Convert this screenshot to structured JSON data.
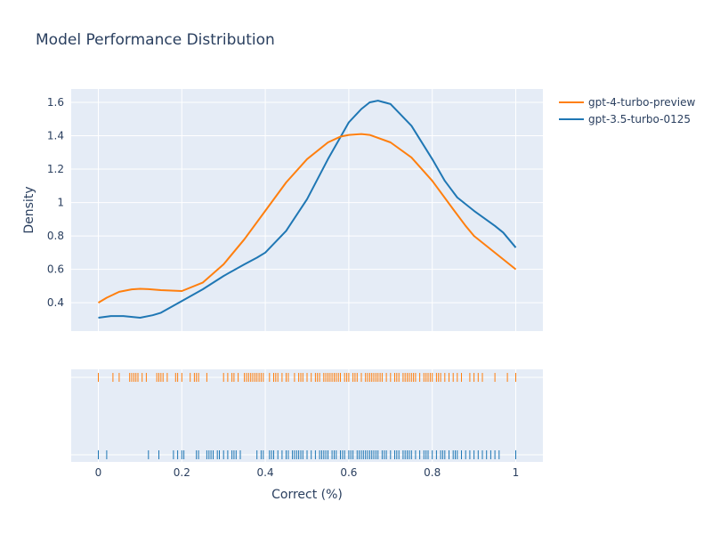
{
  "chart_data": {
    "type": "line",
    "title": "Model Performance Distribution",
    "xlabel": "Correct (%)",
    "ylabel": "Density",
    "xlim": [
      -0.065,
      1.065
    ],
    "ylim": [
      0.23,
      1.68
    ],
    "x_ticks": [
      0,
      0.2,
      0.4,
      0.6,
      0.8,
      1
    ],
    "x_tick_labels": [
      "0",
      "0.2",
      "0.4",
      "0.6",
      "0.8",
      "1"
    ],
    "y_ticks": [
      0.4,
      0.6,
      0.8,
      1.0,
      1.2,
      1.4,
      1.6
    ],
    "y_tick_labels": [
      "0.4",
      "0.6",
      "0.8",
      "1",
      "1.2",
      "1.4",
      "1.6"
    ],
    "grid": true,
    "legend_position": "top-right",
    "background_color": "#E5ECF6",
    "series": [
      {
        "name": "gpt-4-turbo-preview",
        "color": "#FF7F0E",
        "x": [
          0,
          0.02,
          0.05,
          0.08,
          0.1,
          0.12,
          0.15,
          0.2,
          0.25,
          0.3,
          0.35,
          0.4,
          0.45,
          0.5,
          0.55,
          0.58,
          0.6,
          0.63,
          0.65,
          0.7,
          0.75,
          0.8,
          0.85,
          0.88,
          0.9,
          1.0
        ],
        "y": [
          0.4,
          0.43,
          0.465,
          0.48,
          0.483,
          0.481,
          0.475,
          0.47,
          0.52,
          0.63,
          0.78,
          0.95,
          1.12,
          1.26,
          1.36,
          1.395,
          1.405,
          1.41,
          1.405,
          1.36,
          1.27,
          1.13,
          0.96,
          0.86,
          0.8,
          0.6
        ]
      },
      {
        "name": "gpt-3.5-turbo-0125",
        "color": "#1F77B4",
        "x": [
          0,
          0.03,
          0.06,
          0.1,
          0.13,
          0.15,
          0.2,
          0.25,
          0.3,
          0.35,
          0.38,
          0.4,
          0.45,
          0.5,
          0.55,
          0.6,
          0.63,
          0.65,
          0.67,
          0.7,
          0.75,
          0.8,
          0.83,
          0.86,
          0.9,
          0.95,
          0.97,
          1.0
        ],
        "y": [
          0.31,
          0.32,
          0.32,
          0.31,
          0.325,
          0.34,
          0.41,
          0.48,
          0.56,
          0.63,
          0.67,
          0.7,
          0.83,
          1.02,
          1.26,
          1.48,
          1.56,
          1.6,
          1.61,
          1.59,
          1.46,
          1.26,
          1.13,
          1.03,
          0.95,
          0.86,
          0.82,
          0.73
        ]
      }
    ],
    "rug": {
      "gpt-4-turbo-preview": [
        0,
        0,
        0,
        0.035,
        0.05,
        0.075,
        0.08,
        0.085,
        0.09,
        0.095,
        0.105,
        0.115,
        0.14,
        0.145,
        0.15,
        0.155,
        0.165,
        0.185,
        0.19,
        0.2,
        0.22,
        0.23,
        0.235,
        0.24,
        0.26,
        0.3,
        0.31,
        0.32,
        0.325,
        0.335,
        0.35,
        0.355,
        0.36,
        0.365,
        0.37,
        0.375,
        0.38,
        0.385,
        0.39,
        0.395,
        0.41,
        0.42,
        0.425,
        0.43,
        0.44,
        0.45,
        0.455,
        0.47,
        0.48,
        0.485,
        0.49,
        0.5,
        0.51,
        0.52,
        0.525,
        0.53,
        0.54,
        0.545,
        0.55,
        0.555,
        0.56,
        0.565,
        0.57,
        0.575,
        0.58,
        0.59,
        0.595,
        0.6,
        0.61,
        0.615,
        0.62,
        0.63,
        0.64,
        0.645,
        0.65,
        0.655,
        0.66,
        0.665,
        0.67,
        0.675,
        0.68,
        0.69,
        0.7,
        0.71,
        0.715,
        0.72,
        0.73,
        0.735,
        0.74,
        0.745,
        0.75,
        0.755,
        0.76,
        0.77,
        0.78,
        0.785,
        0.79,
        0.795,
        0.8,
        0.81,
        0.815,
        0.82,
        0.83,
        0.84,
        0.85,
        0.86,
        0.87,
        0.89,
        0.9,
        0.91,
        0.92,
        0.95,
        0.98,
        1.0,
        1.0
      ],
      "gpt-3.5-turbo-0125": [
        0,
        0,
        0,
        0.02,
        0.12,
        0.145,
        0.18,
        0.19,
        0.2,
        0.205,
        0.235,
        0.24,
        0.26,
        0.265,
        0.27,
        0.275,
        0.285,
        0.29,
        0.3,
        0.31,
        0.32,
        0.325,
        0.33,
        0.34,
        0.38,
        0.39,
        0.395,
        0.41,
        0.415,
        0.42,
        0.43,
        0.44,
        0.45,
        0.455,
        0.465,
        0.47,
        0.475,
        0.48,
        0.485,
        0.49,
        0.5,
        0.51,
        0.52,
        0.53,
        0.535,
        0.54,
        0.545,
        0.55,
        0.56,
        0.565,
        0.57,
        0.58,
        0.585,
        0.59,
        0.6,
        0.605,
        0.61,
        0.62,
        0.625,
        0.63,
        0.635,
        0.64,
        0.645,
        0.65,
        0.655,
        0.66,
        0.665,
        0.67,
        0.68,
        0.685,
        0.69,
        0.7,
        0.71,
        0.715,
        0.72,
        0.73,
        0.735,
        0.74,
        0.745,
        0.75,
        0.76,
        0.77,
        0.78,
        0.785,
        0.79,
        0.8,
        0.81,
        0.82,
        0.825,
        0.83,
        0.84,
        0.85,
        0.855,
        0.86,
        0.87,
        0.88,
        0.89,
        0.9,
        0.91,
        0.92,
        0.93,
        0.94,
        0.95,
        0.96,
        1.0,
        1.0
      ]
    }
  }
}
